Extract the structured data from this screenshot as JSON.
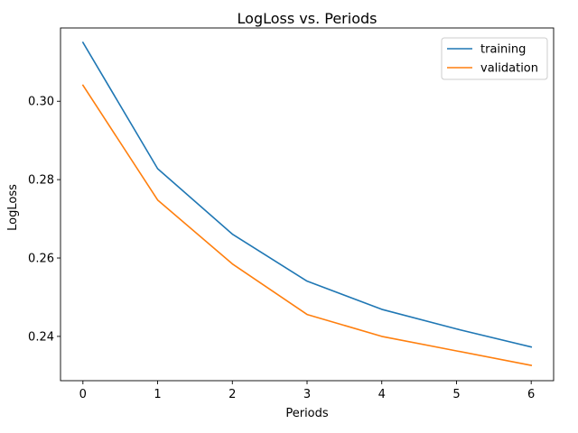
{
  "chart_data": {
    "type": "line",
    "title": "LogLoss vs. Periods",
    "xlabel": "Periods",
    "ylabel": "LogLoss",
    "x": [
      0,
      1,
      2,
      3,
      4,
      5,
      6
    ],
    "xticks": [
      "0",
      "1",
      "2",
      "3",
      "4",
      "5",
      "6"
    ],
    "xlim": [
      -0.3,
      6.3
    ],
    "yticks": [
      "0.24",
      "0.26",
      "0.28",
      "0.30"
    ],
    "ytick_values": [
      0.24,
      0.26,
      0.28,
      0.3
    ],
    "ylim": [
      0.2287,
      0.3187
    ],
    "grid": false,
    "legend_position": "top-right",
    "series": [
      {
        "name": "training",
        "color": "#1f77b4",
        "values": [
          0.315,
          0.2828,
          0.2661,
          0.2541,
          0.2469,
          0.2419,
          0.2373
        ]
      },
      {
        "name": "validation",
        "color": "#ff7f0e",
        "values": [
          0.3041,
          0.2748,
          0.2585,
          0.2456,
          0.24,
          0.2363,
          0.2326
        ]
      }
    ]
  }
}
